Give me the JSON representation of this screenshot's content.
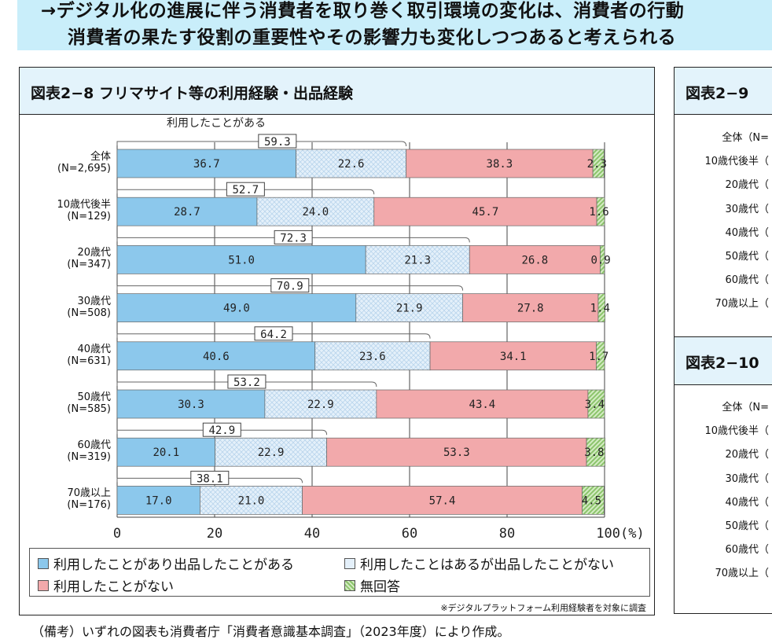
{
  "banner": {
    "line1": "→デジタル化の進展に伴う消費者を取り巻く取引環境の変化は、消費者の行動",
    "line2": "消費者の果たす役割の重要性やその影響力も変化しつつあると考えられる"
  },
  "chart_data": {
    "type": "bar",
    "stacked": true,
    "orientation": "horizontal",
    "title": "図表2−8 フリマサイト等の利用経験・出品経験",
    "bracket_label": "利用したことがある",
    "categories": [
      [
        "全体",
        "(N=2,695)"
      ],
      [
        "10歳代後半",
        "(N=129)"
      ],
      [
        "20歳代",
        "(N=347)"
      ],
      [
        "30歳代",
        "(N=508)"
      ],
      [
        "40歳代",
        "(N=631)"
      ],
      [
        "50歳代",
        "(N=585)"
      ],
      [
        "60歳代",
        "(N=319)"
      ],
      [
        "70歳以上",
        "(N=176)"
      ]
    ],
    "series": [
      {
        "name": "利用したことがあり出品したことがある",
        "color": "#8cc8ec",
        "values": [
          36.7,
          28.7,
          51.0,
          49.0,
          40.6,
          30.3,
          20.1,
          17.0
        ]
      },
      {
        "name": "利用したことはあるが出品したことがない",
        "color": "#e4f0fa",
        "values": [
          22.6,
          24.0,
          21.3,
          21.9,
          23.6,
          22.9,
          22.9,
          21.0
        ]
      },
      {
        "name": "利用したことがない",
        "color": "#f2a9ab",
        "values": [
          38.3,
          45.7,
          26.8,
          27.8,
          34.1,
          43.4,
          53.3,
          57.4
        ]
      },
      {
        "name": "無回答",
        "color": "#b5dc9c",
        "values": [
          2.3,
          1.6,
          0.9,
          1.4,
          1.7,
          3.4,
          3.8,
          4.5
        ]
      }
    ],
    "totals_used": [
      "59.3",
      "52.7",
      "72.3",
      "70.9",
      "64.2",
      "53.2",
      "42.9",
      "38.1"
    ],
    "xticks": [
      "0",
      "20",
      "40",
      "60",
      "80",
      "100(%)"
    ],
    "xlim": [
      0,
      100
    ],
    "note": "※デジタルプラットフォーム利用経験者を対象に調査"
  },
  "right": {
    "title1": "図表2−9",
    "title2": "図表2−10",
    "rows": [
      "全体（N=",
      "10歳代後半（",
      "20歳代（",
      "30歳代（",
      "40歳代（",
      "50歳代（",
      "60歳代（",
      "70歳以上（"
    ]
  },
  "footer": "（備考）いずれの図表も消費者庁「消費者意識基本調査」（2023年度）により作成。"
}
